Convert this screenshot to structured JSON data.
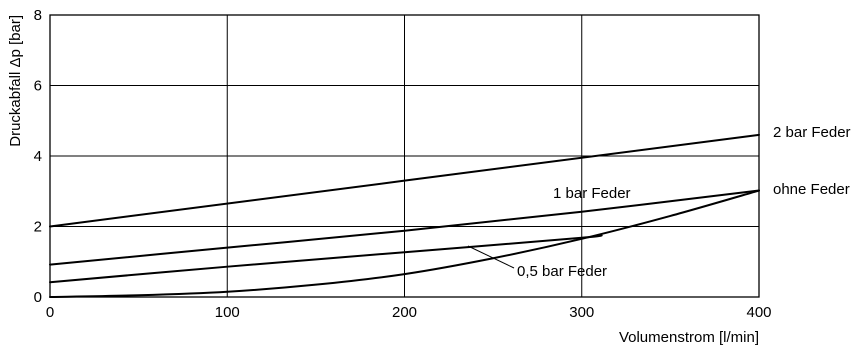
{
  "chart_data": {
    "type": "line",
    "title": "",
    "xlabel": "Volumenstrom [l/min]",
    "ylabel": "Druckabfall Δp [bar]",
    "xlim": [
      0,
      400
    ],
    "ylim": [
      0,
      8
    ],
    "xticks": [
      0,
      100,
      200,
      300,
      400
    ],
    "yticks": [
      0,
      2,
      4,
      6,
      8
    ],
    "grid": true,
    "series": [
      {
        "name": "2 bar Feder",
        "x": [
          0,
          400
        ],
        "y": [
          2.0,
          4.6
        ]
      },
      {
        "name": "1 bar Feder",
        "x": [
          0,
          100,
          200,
          300,
          400
        ],
        "y": [
          0.92,
          1.4,
          1.88,
          2.42,
          3.02
        ]
      },
      {
        "name": "0,5 bar Feder",
        "x": [
          0,
          100,
          200,
          300,
          310
        ],
        "y": [
          0.42,
          0.86,
          1.27,
          1.68,
          1.76
        ]
      },
      {
        "name": "ohne Feder",
        "x": [
          0,
          50,
          100,
          150,
          200,
          250,
          300,
          350,
          400
        ],
        "y": [
          0.0,
          0.05,
          0.15,
          0.35,
          0.65,
          1.1,
          1.65,
          2.3,
          3.02
        ]
      }
    ]
  }
}
